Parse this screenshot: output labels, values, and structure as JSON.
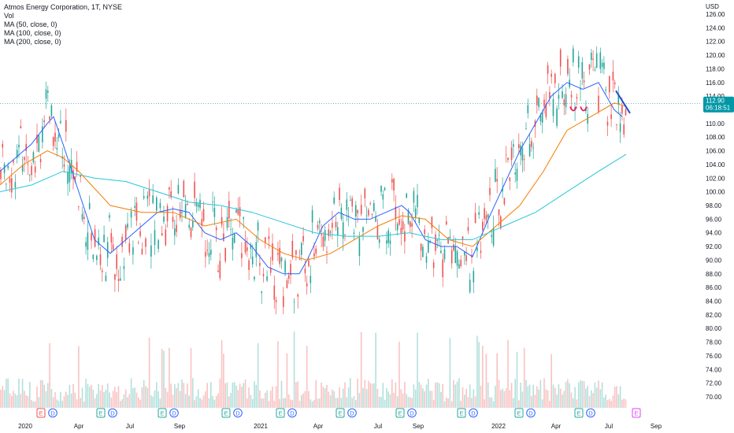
{
  "header": {
    "title": "Atmos Energy Corporation, 1T, NYSE",
    "vol": "Vol",
    "ma50": "MA (50, close, 0)",
    "ma100": "MA (100, close, 0)",
    "ma200": "MA (200, close, 0)"
  },
  "currency": "USD",
  "price_badge": {
    "price": "112.90",
    "countdown": "06:18:51"
  },
  "colors": {
    "up": "#26a69a",
    "down": "#ef5350",
    "ma50": "#2962ff",
    "ma100": "#f57c00",
    "ma200": "#26c6da",
    "badge": "#0097a7",
    "drawn_line": "#1e4fd0",
    "drawn_marks": "#e91e63"
  },
  "chart_data": {
    "type": "candlestick",
    "y_ticks": [
      "126.00",
      "124.00",
      "122.00",
      "120.00",
      "118.00",
      "116.00",
      "114.00",
      "112.00",
      "110.00",
      "108.00",
      "106.00",
      "104.00",
      "102.00",
      "100.00",
      "98.00",
      "96.00",
      "94.00",
      "92.00",
      "90.00",
      "88.00",
      "86.00",
      "84.00",
      "82.00",
      "80.00",
      "78.00",
      "76.00",
      "74.00",
      "72.00",
      "70.00"
    ],
    "y_range": [
      69,
      127
    ],
    "x_labels": [
      "2020",
      "Apr",
      "Jul",
      "Sep",
      "2021",
      "Apr",
      "Jul",
      "Sep",
      "2022",
      "Apr",
      "Jul",
      "Sep"
    ],
    "x_range": [
      "2020-01-01",
      "2022-09-30"
    ],
    "last_price": 112.9,
    "series": [
      {
        "name": "MA (50, close, 0)",
        "points": [
          [
            0,
            103
          ],
          [
            20,
            105
          ],
          [
            40,
            107
          ],
          [
            60,
            110
          ],
          [
            68,
            111
          ],
          [
            80,
            107
          ],
          [
            100,
            100
          ],
          [
            120,
            93
          ],
          [
            140,
            91
          ],
          [
            160,
            93
          ],
          [
            180,
            95
          ],
          [
            200,
            97
          ],
          [
            220,
            97.5
          ],
          [
            240,
            97
          ],
          [
            260,
            94
          ],
          [
            280,
            93
          ],
          [
            300,
            94
          ],
          [
            320,
            92
          ],
          [
            340,
            89
          ],
          [
            360,
            88
          ],
          [
            380,
            88
          ],
          [
            390,
            90
          ],
          [
            410,
            95
          ],
          [
            430,
            97
          ],
          [
            450,
            96
          ],
          [
            470,
            96
          ],
          [
            490,
            97
          ],
          [
            510,
            98
          ],
          [
            520,
            97
          ],
          [
            540,
            93
          ],
          [
            560,
            92
          ],
          [
            580,
            92
          ],
          [
            600,
            90.5
          ],
          [
            620,
            96
          ],
          [
            640,
            101
          ],
          [
            660,
            106
          ],
          [
            680,
            110
          ],
          [
            700,
            114
          ],
          [
            720,
            116
          ],
          [
            740,
            115
          ],
          [
            760,
            116
          ],
          [
            780,
            112
          ],
          [
            790,
            111
          ]
        ]
      },
      {
        "name": "MA (100, close, 0)",
        "points": [
          [
            0,
            101
          ],
          [
            30,
            104
          ],
          [
            60,
            106
          ],
          [
            80,
            105
          ],
          [
            100,
            103
          ],
          [
            140,
            98
          ],
          [
            180,
            97
          ],
          [
            220,
            97
          ],
          [
            260,
            95
          ],
          [
            300,
            96
          ],
          [
            330,
            93
          ],
          [
            360,
            91
          ],
          [
            390,
            90
          ],
          [
            420,
            91
          ],
          [
            450,
            93
          ],
          [
            480,
            95
          ],
          [
            510,
            96.5
          ],
          [
            540,
            96
          ],
          [
            570,
            93
          ],
          [
            600,
            92
          ],
          [
            630,
            95
          ],
          [
            660,
            98
          ],
          [
            690,
            103
          ],
          [
            720,
            109
          ],
          [
            750,
            111
          ],
          [
            780,
            113
          ],
          [
            795,
            112.5
          ]
        ]
      },
      {
        "name": "MA (200, close, 0)",
        "points": [
          [
            0,
            100
          ],
          [
            40,
            101
          ],
          [
            80,
            103
          ],
          [
            120,
            102
          ],
          [
            160,
            101.5
          ],
          [
            200,
            100
          ],
          [
            240,
            98.5
          ],
          [
            280,
            98
          ],
          [
            320,
            97
          ],
          [
            360,
            95.5
          ],
          [
            400,
            94
          ],
          [
            440,
            93.5
          ],
          [
            480,
            93.5
          ],
          [
            520,
            94
          ],
          [
            560,
            93
          ],
          [
            600,
            93
          ],
          [
            640,
            95
          ],
          [
            680,
            97
          ],
          [
            720,
            100
          ],
          [
            760,
            103
          ],
          [
            795,
            105.5
          ]
        ]
      },
      {
        "name": "drawn trendline",
        "points": [
          [
            782,
            114.8
          ],
          [
            800,
            111.5
          ]
        ]
      }
    ],
    "annotations": [
      {
        "type": "marker",
        "label": "E",
        "x": 52,
        "color": "#ef5350"
      },
      {
        "type": "marker",
        "label": "D",
        "x": 67,
        "color": "#2962ff"
      },
      {
        "type": "marker",
        "label": "E",
        "x": 128,
        "color": "#26a69a"
      },
      {
        "type": "marker",
        "label": "D",
        "x": 143,
        "color": "#2962ff"
      },
      {
        "type": "marker",
        "label": "E",
        "x": 206,
        "color": "#26a69a"
      },
      {
        "type": "marker",
        "label": "D",
        "x": 221,
        "color": "#2962ff"
      },
      {
        "type": "marker",
        "label": "E",
        "x": 287,
        "color": "#26a69a"
      },
      {
        "type": "marker",
        "label": "D",
        "x": 302,
        "color": "#2962ff"
      },
      {
        "type": "marker",
        "label": "E",
        "x": 356,
        "color": "#26a69a"
      },
      {
        "type": "marker",
        "label": "D",
        "x": 371,
        "color": "#2962ff"
      },
      {
        "type": "marker",
        "label": "E",
        "x": 432,
        "color": "#26a69a"
      },
      {
        "type": "marker",
        "label": "D",
        "x": 447,
        "color": "#2962ff"
      },
      {
        "type": "marker",
        "label": "E",
        "x": 508,
        "color": "#26a69a"
      },
      {
        "type": "marker",
        "label": "D",
        "x": 523,
        "color": "#2962ff"
      },
      {
        "type": "marker",
        "label": "E",
        "x": 586,
        "color": "#26a69a"
      },
      {
        "type": "marker",
        "label": "D",
        "x": 601,
        "color": "#2962ff"
      },
      {
        "type": "marker",
        "label": "E",
        "x": 659,
        "color": "#26a69a"
      },
      {
        "type": "marker",
        "label": "D",
        "x": 674,
        "color": "#2962ff"
      },
      {
        "type": "marker",
        "label": "E",
        "x": 735,
        "color": "#26a69a"
      },
      {
        "type": "marker",
        "label": "D",
        "x": 750,
        "color": "#2962ff"
      },
      {
        "type": "marker",
        "label": "E",
        "x": 808,
        "color": "#e040fb"
      }
    ]
  }
}
